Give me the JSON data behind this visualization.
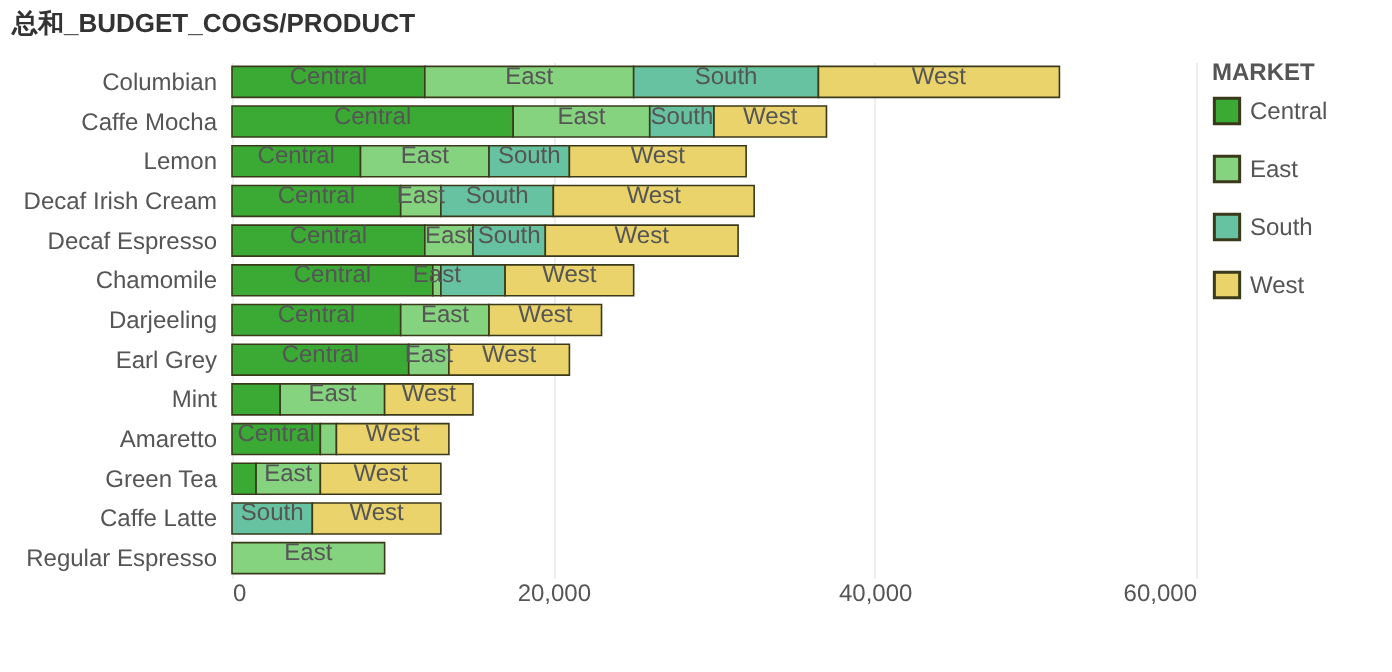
{
  "chart_data": {
    "type": "bar",
    "orientation": "horizontal",
    "stacked": true,
    "title": "总和_BUDGET_COGS/PRODUCT",
    "legend_title": "MARKET",
    "legend": "right",
    "grid": "x",
    "categories": [
      "Columbian",
      "Caffe Mocha",
      "Lemon",
      "Decaf Irish Cream",
      "Decaf Espresso",
      "Chamomile",
      "Darjeeling",
      "Earl Grey",
      "Mint",
      "Amaretto",
      "Green Tea",
      "Caffe Latte",
      "Regular Espresso"
    ],
    "xlim": [
      0,
      60000
    ],
    "xticks": [
      {
        "value": 0,
        "label": "0"
      },
      {
        "value": 20000,
        "label": "20,000"
      },
      {
        "value": 40000,
        "label": "40,000"
      },
      {
        "value": 60000,
        "label": "60,000"
      }
    ],
    "series": [
      {
        "name": "Central",
        "color": "#3aaa35",
        "values": [
          12000,
          17500,
          8000,
          10500,
          12000,
          12500,
          10500,
          11000,
          3000,
          5500,
          1500,
          null,
          null
        ],
        "value_labels": [
          "Central",
          "Central",
          "Central",
          "Central",
          "Central",
          "Central",
          "Central",
          "Central",
          null,
          "Central",
          null,
          null,
          null
        ]
      },
      {
        "name": "East",
        "color": "#86d37f",
        "values": [
          13000,
          8500,
          8000,
          2500,
          3000,
          500,
          5500,
          2500,
          6500,
          1000,
          4000,
          null,
          9500
        ],
        "value_labels": [
          "East",
          "East",
          "East",
          "East",
          "East",
          "East",
          "East",
          "East",
          "East",
          null,
          "East",
          null,
          "East"
        ]
      },
      {
        "name": "South",
        "color": "#66c2a0",
        "values": [
          11500,
          4000,
          5000,
          7000,
          4500,
          4000,
          null,
          null,
          null,
          null,
          null,
          5000,
          null
        ],
        "value_labels": [
          "South",
          "South",
          "South",
          "South",
          "South",
          null,
          null,
          null,
          null,
          null,
          null,
          "South",
          null
        ]
      },
      {
        "name": "West",
        "color": "#e9d36a",
        "values": [
          15000,
          7000,
          11000,
          12500,
          12000,
          8000,
          7000,
          7500,
          5500,
          7000,
          7500,
          8000,
          null
        ],
        "value_labels": [
          "West",
          "West",
          "West",
          "West",
          "West",
          "West",
          "West",
          "West",
          "West",
          "West",
          "West",
          "West",
          null
        ]
      }
    ]
  }
}
